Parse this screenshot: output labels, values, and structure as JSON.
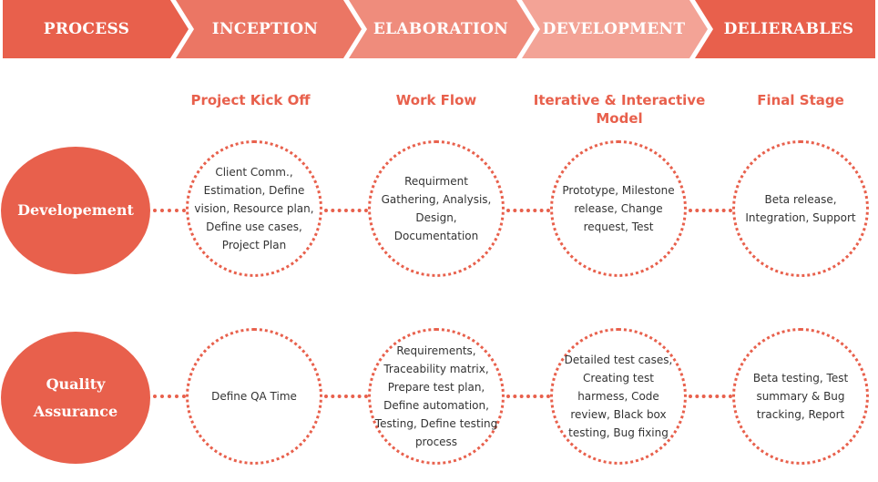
{
  "colors": {
    "steps": [
      "#e8604c",
      "#eb7664",
      "#ef8c7c",
      "#f3a396",
      "#e8604c"
    ],
    "accent": "#e8604c",
    "text": "#333333"
  },
  "steps": [
    "PROCESS",
    "INCEPTION",
    "ELABORATION",
    "DEVELOPMENT",
    "DELIERABLES"
  ],
  "phases": [
    "Project Kick Off",
    "Work Flow",
    "Iterative & Interactive Model",
    "Final Stage"
  ],
  "rows": [
    {
      "label": "Developement",
      "cells": [
        "Client Comm., Estimation, Define vision, Resource plan, Define use cases, Project Plan",
        "Requirment Gathering, Analysis, Design, Documentation",
        "Prototype, Milestone release, Change request, Test",
        "Beta release, Integration, Support"
      ]
    },
    {
      "label": "Quality Assurance",
      "cells": [
        "Define QA Time",
        "Requirements, Traceability matrix, Prepare test plan, Define automation, Testing, Define testing process",
        "Detailed test cases, Creating test harmess, Code review, Black box testing, Bug fixing",
        "Beta testing, Test summary & Bug tracking, Report"
      ]
    }
  ]
}
